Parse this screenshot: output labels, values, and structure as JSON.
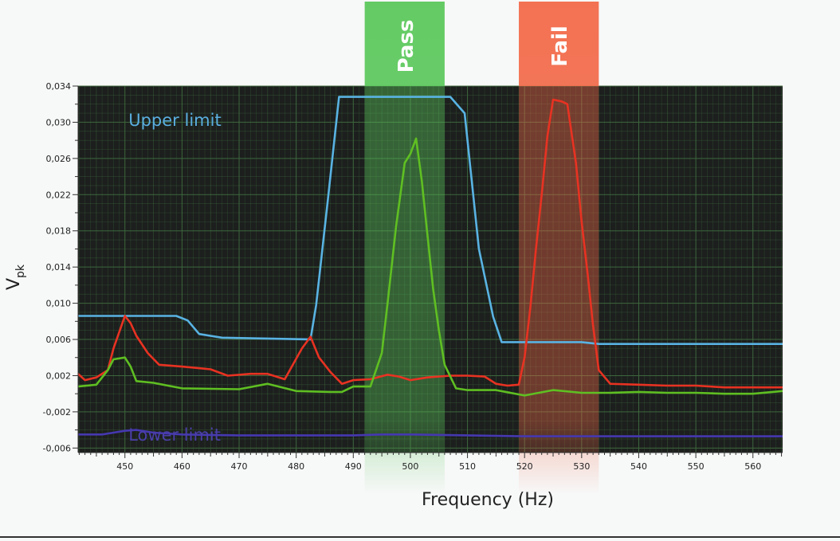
{
  "chart_data": {
    "type": "line",
    "title": "",
    "xlabel": "Frequency (Hz)",
    "ylabel": "V",
    "ylabel_sub": "pk",
    "xlim": [
      441.8,
      565.2
    ],
    "ylim": [
      -0.0065,
      0.034
    ],
    "x_ticks": [
      450,
      460,
      470,
      480,
      490,
      500,
      510,
      520,
      530,
      540,
      550,
      560
    ],
    "x_tick_labels": [
      "450",
      "460",
      "470",
      "480",
      "490",
      "500",
      "510",
      "520",
      "530",
      "540",
      "550",
      "560"
    ],
    "y_ticks": [
      -0.006,
      -0.002,
      0.002,
      0.006,
      0.01,
      0.014,
      0.018,
      0.022,
      0.026,
      0.03,
      0.034
    ],
    "y_tick_labels": [
      "-0,006",
      "-0,002",
      "0,002",
      "0,006",
      "0,010",
      "0,014",
      "0,018",
      "0,022",
      "0,026",
      "0,030",
      "0,034"
    ],
    "grid": true,
    "plot_background": "#1c1f1d",
    "grid_color": "#3f6a3f",
    "bands": [
      {
        "label": "Pass",
        "x_start": 492,
        "x_end": 506,
        "color": "#5cc85c"
      },
      {
        "label": "Fail",
        "x_start": 519,
        "x_end": 533,
        "color": "#f26a4a"
      }
    ],
    "annotations": [
      {
        "text": "Upper limit",
        "x": 445.6,
        "y": 0.0305,
        "color": "#5aaee0"
      },
      {
        "text": "Lower limit",
        "x": 445.6,
        "y": -0.0043,
        "color": "#4a3fa8"
      }
    ],
    "series": [
      {
        "color": "#59b3e3",
        "x": [
          441.8,
          450,
          459,
          461,
          463,
          467,
          482.5,
          483.5,
          485.5,
          487.5,
          490,
          500,
          507,
          509.5,
          512,
          514.5,
          516,
          520,
          525,
          530,
          533,
          540,
          550,
          560,
          565.2
        ],
        "values": [
          0.0086,
          0.0086,
          0.0086,
          0.0081,
          0.0066,
          0.0062,
          0.006,
          0.0098,
          0.0212,
          0.0328,
          0.0328,
          0.0328,
          0.0328,
          0.031,
          0.016,
          0.0085,
          0.0057,
          0.0057,
          0.0057,
          0.0057,
          0.0055,
          0.0055,
          0.0055,
          0.0055,
          0.0055
        ]
      },
      {
        "color": "#4538b0",
        "x": [
          441.8,
          446,
          448,
          450,
          452,
          455,
          460,
          470,
          480,
          490,
          495,
          500,
          510,
          520,
          530,
          540,
          550,
          560,
          565.2
        ],
        "values": [
          -0.0045,
          -0.0045,
          -0.0043,
          -0.0041,
          -0.004,
          -0.0043,
          -0.0045,
          -0.0046,
          -0.0046,
          -0.0046,
          -0.0045,
          -0.0045,
          -0.0046,
          -0.0047,
          -0.0047,
          -0.0047,
          -0.0047,
          -0.0047,
          -0.0047
        ]
      },
      {
        "color": "#e83222",
        "x": [
          441.8,
          443,
          445,
          447,
          448,
          450,
          451,
          452,
          454,
          456,
          460,
          465,
          468,
          472,
          475,
          478,
          481,
          482.5,
          484,
          486,
          488,
          490,
          493,
          496,
          498,
          500,
          503,
          507,
          510,
          513,
          515,
          517,
          519,
          520,
          521,
          522,
          523,
          524,
          525,
          526.5,
          527.5,
          528,
          529,
          530,
          531,
          532,
          533,
          535,
          540,
          545,
          550,
          555,
          560,
          565.2
        ],
        "values": [
          0.0022,
          0.0015,
          0.0018,
          0.0026,
          0.005,
          0.0086,
          0.0078,
          0.0064,
          0.0045,
          0.0032,
          0.003,
          0.0027,
          0.002,
          0.0022,
          0.0022,
          0.0016,
          0.005,
          0.0063,
          0.004,
          0.0024,
          0.0011,
          0.0015,
          0.0016,
          0.0021,
          0.0019,
          0.0015,
          0.0018,
          0.002,
          0.002,
          0.0019,
          0.0011,
          0.0009,
          0.001,
          0.004,
          0.0095,
          0.016,
          0.022,
          0.0285,
          0.0325,
          0.0323,
          0.032,
          0.0298,
          0.0255,
          0.019,
          0.0135,
          0.0075,
          0.0026,
          0.0011,
          0.001,
          0.0009,
          0.0009,
          0.0007,
          0.0007,
          0.0007
        ]
      },
      {
        "color": "#5fbf22",
        "x": [
          441.8,
          445,
          447,
          448,
          450,
          451,
          452,
          455,
          460,
          470,
          475,
          480,
          486,
          488,
          490,
          493,
          495,
          496,
          497.5,
          499,
          500,
          501,
          502,
          503,
          504,
          505,
          506,
          508,
          510,
          512,
          515,
          520,
          525,
          530,
          535,
          540,
          545,
          550,
          555,
          560,
          565.2
        ],
        "values": [
          0.0008,
          0.001,
          0.0026,
          0.0038,
          0.004,
          0.003,
          0.0014,
          0.0012,
          0.0006,
          0.0005,
          0.0011,
          0.0003,
          0.0002,
          0.0002,
          0.0008,
          0.0008,
          0.0045,
          0.01,
          0.0185,
          0.0255,
          0.0265,
          0.0282,
          0.0235,
          0.0175,
          0.0115,
          0.007,
          0.0032,
          0.0006,
          0.0004,
          0.0004,
          0.0004,
          -0.0002,
          0.0004,
          0.0001,
          0.0001,
          0.0002,
          0.0001,
          0.0001,
          0.0,
          0.0,
          0.0003
        ]
      }
    ]
  }
}
